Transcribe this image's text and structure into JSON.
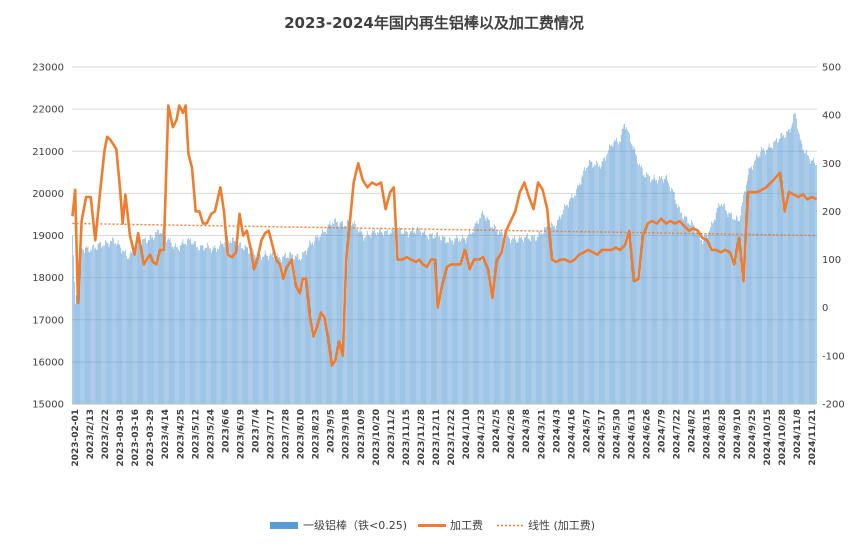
{
  "chart_data": {
    "type": "bar+line",
    "title": "2023-2024年国内再生铝棒以及加工费情况",
    "y_left": {
      "min": 15000,
      "max": 23000,
      "ticks": [
        15000,
        16000,
        17000,
        18000,
        19000,
        20000,
        21000,
        22000,
        23000
      ]
    },
    "y_right": {
      "min": -200,
      "max": 500,
      "ticks": [
        -200,
        -100,
        0,
        100,
        200,
        300,
        400,
        500
      ]
    },
    "x_tick_labels": [
      "2023-02-01",
      "2023/2/13",
      "2023/2/22",
      "2023-03-03",
      "2023-03-16",
      "2023-03-29",
      "2023/4/14",
      "2023/4/25",
      "2023/5/12",
      "2023/5/24",
      "2023/6/6",
      "2023/6/19",
      "2023/7/4",
      "2023/7/17",
      "2023/7/28",
      "2023/8/10",
      "2023/8/23",
      "2023/9/5",
      "2023/9/18",
      "2023/10/9",
      "2023/10/20",
      "2023/11/2",
      "2023/11/15",
      "2023/11/28",
      "2023/12/11",
      "2023/12/22",
      "2024/1/10",
      "2024/1/23",
      "2024/2/5",
      "2024/2/26",
      "2024/3/8",
      "2024/3/21",
      "2024/4/3",
      "2024/4/16",
      "2024/5/7",
      "2024/5/17",
      "2024/5/30",
      "2024/6/13",
      "2024/6/26",
      "2024/7/9",
      "2024/7/22",
      "2024/8/2",
      "2024/8/15",
      "2024/8/28",
      "2024/9/10",
      "2024/9/25",
      "2024/10/15",
      "2024/10/28",
      "2024/11/8",
      "2024/11/21"
    ],
    "legend_position": "bottom",
    "series": [
      {
        "name": "一级铝棒（铁<0.25)",
        "type": "bar",
        "axis": "left",
        "color": "#5B9BD5",
        "knots": [
          [
            0,
            19000
          ],
          [
            3,
            17300
          ],
          [
            8,
            18700
          ],
          [
            25,
            18700
          ],
          [
            45,
            18900
          ],
          [
            60,
            18500
          ],
          [
            75,
            18800
          ],
          [
            95,
            19100
          ],
          [
            115,
            18700
          ],
          [
            130,
            18900
          ],
          [
            140,
            18700
          ],
          [
            155,
            18700
          ],
          [
            175,
            18900
          ],
          [
            195,
            18600
          ],
          [
            215,
            18500
          ],
          [
            235,
            18500
          ],
          [
            250,
            18500
          ],
          [
            270,
            19000
          ],
          [
            285,
            19300
          ],
          [
            305,
            19300
          ],
          [
            320,
            19000
          ],
          [
            340,
            19100
          ],
          [
            360,
            19100
          ],
          [
            380,
            19100
          ],
          [
            395,
            19000
          ],
          [
            410,
            18900
          ],
          [
            430,
            18900
          ],
          [
            450,
            19500
          ],
          [
            470,
            19000
          ],
          [
            490,
            18900
          ],
          [
            510,
            19000
          ],
          [
            530,
            19300
          ],
          [
            550,
            20000
          ],
          [
            565,
            20700
          ],
          [
            580,
            20700
          ],
          [
            592,
            21200
          ],
          [
            600,
            21300
          ],
          [
            605,
            21700
          ],
          [
            610,
            21300
          ],
          [
            625,
            20500
          ],
          [
            635,
            20300
          ],
          [
            650,
            20400
          ],
          [
            665,
            19600
          ],
          [
            680,
            19200
          ],
          [
            690,
            18900
          ],
          [
            700,
            19200
          ],
          [
            710,
            19800
          ],
          [
            720,
            19500
          ],
          [
            730,
            19300
          ],
          [
            740,
            20500
          ],
          [
            755,
            21000
          ],
          [
            770,
            21200
          ],
          [
            785,
            21500
          ],
          [
            792,
            21900
          ],
          [
            797,
            21200
          ],
          [
            805,
            20900
          ],
          [
            815,
            20700
          ]
        ]
      },
      {
        "name": "加工费",
        "type": "line",
        "axis": "right",
        "color": "#ED7D31",
        "knots": [
          [
            0,
            190
          ],
          [
            3,
            245
          ],
          [
            6,
            10
          ],
          [
            10,
            180
          ],
          [
            15,
            230
          ],
          [
            20,
            230
          ],
          [
            25,
            140
          ],
          [
            30,
            235
          ],
          [
            35,
            325
          ],
          [
            38,
            355
          ],
          [
            41,
            350
          ],
          [
            48,
            330
          ],
          [
            52,
            250
          ],
          [
            55,
            175
          ],
          [
            58,
            235
          ],
          [
            63,
            150
          ],
          [
            68,
            110
          ],
          [
            72,
            155
          ],
          [
            78,
            90
          ],
          [
            85,
            110
          ],
          [
            88,
            95
          ],
          [
            92,
            90
          ],
          [
            96,
            120
          ],
          [
            100,
            120
          ],
          [
            105,
            420
          ],
          [
            110,
            375
          ],
          [
            114,
            390
          ],
          [
            117,
            420
          ],
          [
            121,
            405
          ],
          [
            124,
            420
          ],
          [
            127,
            320
          ],
          [
            131,
            290
          ],
          [
            135,
            200
          ],
          [
            139,
            200
          ],
          [
            143,
            175
          ],
          [
            147,
            175
          ],
          [
            152,
            195
          ],
          [
            156,
            200
          ],
          [
            159,
            225
          ],
          [
            162,
            250
          ],
          [
            166,
            200
          ],
          [
            170,
            110
          ],
          [
            175,
            105
          ],
          [
            179,
            115
          ],
          [
            183,
            195
          ],
          [
            187,
            150
          ],
          [
            191,
            160
          ],
          [
            195,
            125
          ],
          [
            199,
            80
          ],
          [
            203,
            105
          ],
          [
            207,
            140
          ],
          [
            211,
            155
          ],
          [
            215,
            160
          ],
          [
            219,
            130
          ],
          [
            223,
            100
          ],
          [
            227,
            90
          ],
          [
            231,
            60
          ],
          [
            235,
            85
          ],
          [
            240,
            100
          ],
          [
            245,
            45
          ],
          [
            249,
            30
          ],
          [
            252,
            60
          ],
          [
            256,
            60
          ],
          [
            260,
            -20
          ],
          [
            264,
            -60
          ],
          [
            268,
            -40
          ],
          [
            272,
            -10
          ],
          [
            276,
            -20
          ],
          [
            280,
            -60
          ],
          [
            284,
            -120
          ],
          [
            288,
            -110
          ],
          [
            292,
            -70
          ],
          [
            296,
            -100
          ],
          [
            300,
            100
          ],
          [
            304,
            180
          ],
          [
            308,
            260
          ],
          [
            313,
            300
          ],
          [
            318,
            265
          ],
          [
            323,
            250
          ],
          [
            328,
            260
          ],
          [
            333,
            255
          ],
          [
            338,
            260
          ],
          [
            343,
            205
          ],
          [
            348,
            240
          ],
          [
            352,
            250
          ],
          [
            356,
            100
          ],
          [
            361,
            100
          ],
          [
            366,
            105
          ],
          [
            371,
            100
          ],
          [
            376,
            95
          ],
          [
            380,
            100
          ],
          [
            384,
            90
          ],
          [
            388,
            85
          ],
          [
            393,
            100
          ],
          [
            397,
            100
          ],
          [
            400,
            0
          ],
          [
            405,
            45
          ],
          [
            410,
            85
          ],
          [
            415,
            90
          ],
          [
            420,
            90
          ],
          [
            425,
            90
          ],
          [
            430,
            120
          ],
          [
            435,
            80
          ],
          [
            440,
            100
          ],
          [
            445,
            100
          ],
          [
            450,
            105
          ],
          [
            455,
            80
          ],
          [
            460,
            20
          ],
          [
            465,
            100
          ],
          [
            470,
            115
          ],
          [
            475,
            160
          ],
          [
            480,
            180
          ],
          [
            485,
            200
          ],
          [
            490,
            240
          ],
          [
            495,
            260
          ],
          [
            500,
            230
          ],
          [
            505,
            205
          ],
          [
            510,
            260
          ],
          [
            515,
            245
          ],
          [
            520,
            205
          ],
          [
            525,
            100
          ],
          [
            530,
            95
          ],
          [
            535,
            100
          ],
          [
            540,
            100
          ],
          [
            545,
            95
          ],
          [
            550,
            100
          ],
          [
            555,
            110
          ],
          [
            560,
            115
          ],
          [
            565,
            120
          ],
          [
            570,
            115
          ],
          [
            575,
            110
          ],
          [
            580,
            120
          ],
          [
            585,
            120
          ],
          [
            590,
            120
          ],
          [
            595,
            125
          ],
          [
            600,
            120
          ],
          [
            605,
            130
          ],
          [
            610,
            160
          ],
          [
            615,
            55
          ],
          [
            620,
            60
          ],
          [
            625,
            150
          ],
          [
            630,
            175
          ],
          [
            635,
            180
          ],
          [
            640,
            175
          ],
          [
            645,
            185
          ],
          [
            650,
            175
          ],
          [
            655,
            180
          ],
          [
            660,
            175
          ],
          [
            665,
            180
          ],
          [
            670,
            170
          ],
          [
            675,
            160
          ],
          [
            680,
            165
          ],
          [
            685,
            160
          ],
          [
            690,
            145
          ],
          [
            695,
            140
          ],
          [
            700,
            120
          ],
          [
            705,
            120
          ],
          [
            710,
            115
          ],
          [
            715,
            120
          ],
          [
            720,
            115
          ],
          [
            725,
            90
          ],
          [
            730,
            145
          ],
          [
            735,
            55
          ],
          [
            740,
            240
          ],
          [
            745,
            240
          ],
          [
            750,
            240
          ],
          [
            755,
            245
          ],
          [
            760,
            250
          ],
          [
            765,
            260
          ],
          [
            770,
            270
          ],
          [
            775,
            280
          ],
          [
            780,
            200
          ],
          [
            785,
            240
          ],
          [
            790,
            235
          ],
          [
            795,
            230
          ],
          [
            800,
            235
          ],
          [
            805,
            225
          ],
          [
            810,
            230
          ],
          [
            815,
            225
          ]
        ]
      },
      {
        "name": "线性 (加工费)",
        "type": "trendline",
        "axis": "right",
        "color": "#ED7D31",
        "start": 175,
        "end": 150
      }
    ]
  }
}
